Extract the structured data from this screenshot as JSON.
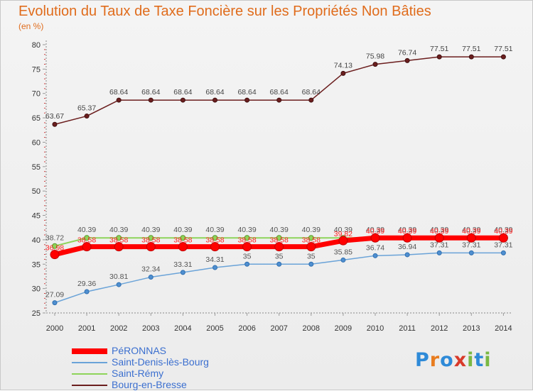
{
  "title": "Evolution du Taux de Taxe Foncière sur les Propriétés Non Bâties",
  "unit_label": "(en %)",
  "logo": {
    "text": "Proxiti",
    "letters": [
      "P",
      "r",
      "o",
      "x",
      "i",
      "t",
      "i"
    ],
    "colors": [
      "#2e8ad8",
      "#e87c1e",
      "#2e8ad8",
      "#d83a2a",
      "#7ab843",
      "#2e8ad8",
      "#7ab843"
    ]
  },
  "chart_data": {
    "type": "line",
    "title": "Evolution du Taux de Taxe Foncière sur les Propriétés Non Bâties",
    "ylabel": "(en %)",
    "xlabel": "",
    "x": [
      "2000",
      "2001",
      "2002",
      "2003",
      "2004",
      "2005",
      "2006",
      "2007",
      "2008",
      "2009",
      "2010",
      "2011",
      "2012",
      "2013",
      "2014"
    ],
    "ylim": [
      25,
      80
    ],
    "yticks": [
      25,
      30,
      35,
      40,
      45,
      50,
      55,
      60,
      65,
      70,
      75,
      80
    ],
    "grid": false,
    "legend_position": "bottom-left",
    "series": [
      {
        "name": "PéRONNAS",
        "color": "#ff0000",
        "values": [
          36.98,
          38.58,
          38.58,
          38.58,
          38.58,
          38.58,
          38.58,
          38.58,
          38.58,
          39.82,
          40.39,
          40.39,
          40.39,
          40.39,
          40.39
        ],
        "labels": [
          "36.98",
          "38.58",
          "38.58",
          "38.58",
          "38.58",
          "38.58",
          "38.58",
          "38.58",
          "38.58",
          "39.82",
          "40.39",
          "40.39",
          "40.39",
          "40.39",
          "40.39"
        ]
      },
      {
        "name": "Saint-Denis-lès-Bourg",
        "color": "#6aa3d8",
        "values": [
          27.09,
          29.36,
          30.81,
          32.34,
          33.31,
          34.31,
          35,
          35,
          35,
          35.85,
          36.74,
          36.94,
          37.31,
          37.31,
          37.31
        ],
        "labels": [
          "27.09",
          "29.36",
          "30.81",
          "32.34",
          "33.31",
          "34.31",
          "35",
          "35",
          "35",
          "35.85",
          "36.74",
          "36.94",
          "37.31",
          "37.31",
          "37.31"
        ]
      },
      {
        "name": "Saint-Rémy",
        "color": "#8ed45a",
        "values": [
          38.72,
          40.39,
          40.39,
          40.39,
          40.39,
          40.39,
          40.39,
          40.39,
          40.39,
          40.39,
          40.39,
          40.39,
          40.39,
          40.39,
          40.39
        ],
        "labels": [
          "38.72",
          "40.39",
          "40.39",
          "40.39",
          "40.39",
          "40.39",
          "40.39",
          "40.39",
          "40.39",
          "40.39",
          "40.39",
          "40.39",
          "40.39",
          "40.39",
          "40.39"
        ]
      },
      {
        "name": "Bourg-en-Bresse",
        "color": "#6b1e1e",
        "values": [
          63.67,
          65.37,
          68.64,
          68.64,
          68.64,
          68.64,
          68.64,
          68.64,
          68.64,
          74.13,
          75.98,
          76.74,
          77.51,
          77.51,
          77.51
        ],
        "labels": [
          "63.67",
          "65.37",
          "68.64",
          "68.64",
          "68.64",
          "68.64",
          "68.64",
          "68.64",
          "68.64",
          "74.13",
          "75.98",
          "76.74",
          "77.51",
          "77.51",
          "77.51"
        ]
      }
    ]
  }
}
